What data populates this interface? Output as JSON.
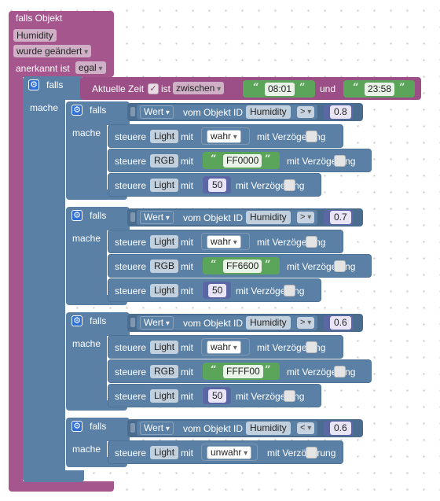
{
  "trigger": {
    "falls_objekt": "falls Objekt",
    "object": "Humidity",
    "change": "wurde geändert",
    "ack_label": "anerkannt ist",
    "ack_value": "egal"
  },
  "time_if": {
    "falls": "falls",
    "mache": "mache",
    "label": "Aktuelle Zeit",
    "ist": "ist",
    "mode": "zwischen",
    "from": "08:01",
    "und": "und",
    "to": "23:58"
  },
  "quote": "“",
  "quote_close": "”",
  "conditions": [
    {
      "falls": "falls",
      "mache": "mache",
      "wert": "Wert",
      "vom_objekt": "vom Objekt ID",
      "object": "Humidity",
      "op": ">",
      "value": "0.8",
      "actions": [
        {
          "steuere": "steuere",
          "target": "Light",
          "mit": "mit",
          "value": "wahr",
          "delay": "mit Verzögerung",
          "kind": "dropdown"
        },
        {
          "steuere": "steuere",
          "target": "RGB",
          "mit": "mit",
          "value": "FF0000",
          "delay": "mit Verzögerung",
          "kind": "string"
        },
        {
          "steuere": "steuere",
          "target": "Light",
          "mit": "mit",
          "value": "50",
          "delay": "mit Verzögerung",
          "kind": "number"
        }
      ]
    },
    {
      "falls": "falls",
      "mache": "mache",
      "wert": "Wert",
      "vom_objekt": "vom Objekt ID",
      "object": "Humidity",
      "op": ">",
      "value": "0.7",
      "actions": [
        {
          "steuere": "steuere",
          "target": "Light",
          "mit": "mit",
          "value": "wahr",
          "delay": "mit Verzögerung",
          "kind": "dropdown"
        },
        {
          "steuere": "steuere",
          "target": "RGB",
          "mit": "mit",
          "value": "FF6600",
          "delay": "mit Verzögerung",
          "kind": "string"
        },
        {
          "steuere": "steuere",
          "target": "Light",
          "mit": "mit",
          "value": "50",
          "delay": "mit Verzögerung",
          "kind": "number"
        }
      ]
    },
    {
      "falls": "falls",
      "mache": "mache",
      "wert": "Wert",
      "vom_objekt": "vom Objekt ID",
      "object": "Humidity",
      "op": ">",
      "value": "0.6",
      "actions": [
        {
          "steuere": "steuere",
          "target": "Light",
          "mit": "mit",
          "value": "wahr",
          "delay": "mit Verzögerung",
          "kind": "dropdown"
        },
        {
          "steuere": "steuere",
          "target": "RGB",
          "mit": "mit",
          "value": "FFFF00",
          "delay": "mit Verzögerung",
          "kind": "string"
        },
        {
          "steuere": "steuere",
          "target": "Light",
          "mit": "mit",
          "value": "50",
          "delay": "mit Verzögerung",
          "kind": "number"
        }
      ]
    },
    {
      "falls": "falls",
      "mache": "mache",
      "wert": "Wert",
      "vom_objekt": "vom Objekt ID",
      "object": "Humidity",
      "op": "<",
      "value": "0.6",
      "actions": [
        {
          "steuere": "steuere",
          "target": "Light",
          "mit": "mit",
          "value": "unwahr",
          "delay": "mit Verzögerung",
          "kind": "dropdown"
        }
      ]
    }
  ],
  "colors": {
    "trigger_block": "#a5568c",
    "logic_block": "#5b80a5",
    "text_block": "#5ba55b",
    "math_block": "#5b67a5"
  },
  "icons": {
    "gear": "gear-icon",
    "checkbox": "checkbox-icon"
  }
}
